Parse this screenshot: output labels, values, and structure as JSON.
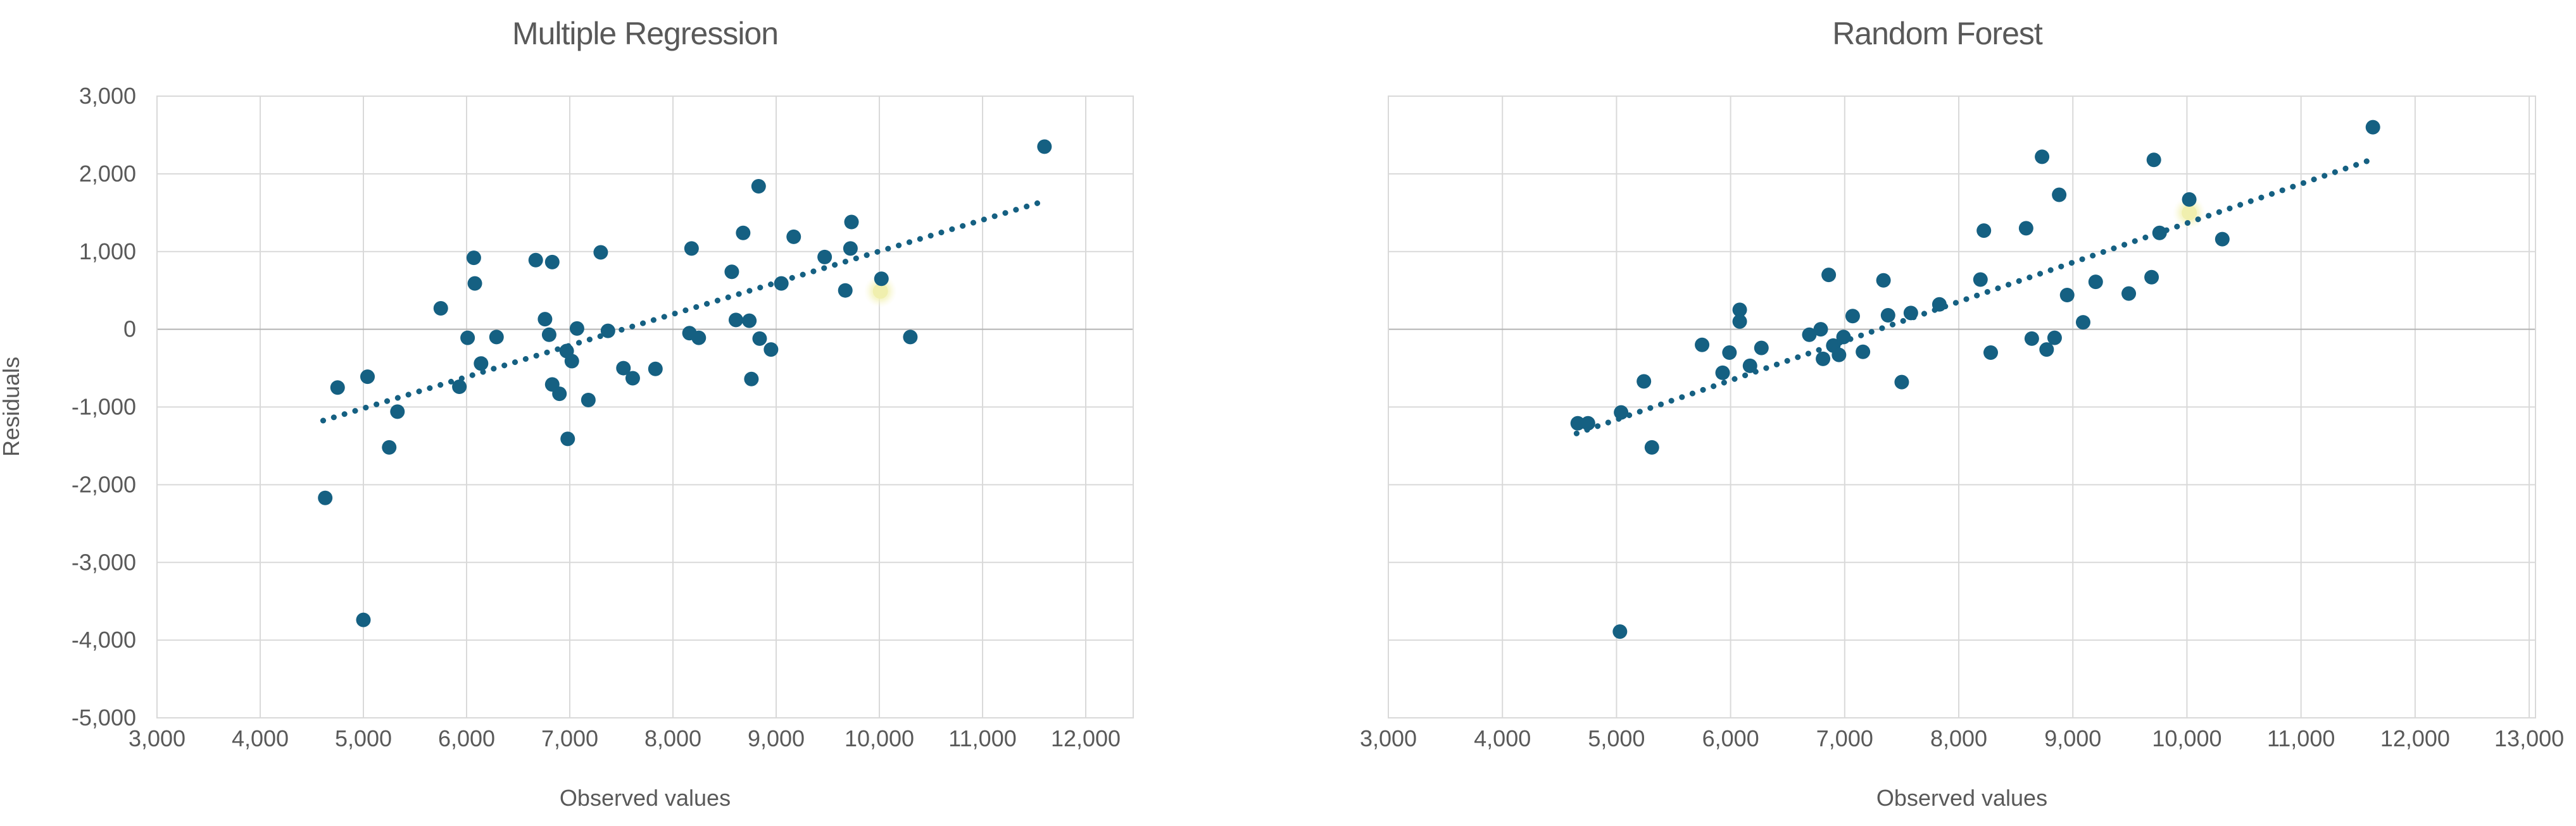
{
  "page": {
    "background_color": "#ffffff",
    "text_color": "#595959",
    "gridline_color": "#d9d9d9",
    "zero_line_color": "#b3b3b3",
    "point_color": "#156082",
    "trendline_color": "#156082",
    "highlight_color": "#f0efae"
  },
  "chart_data": [
    {
      "type": "scatter",
      "title": "Multiple Regression",
      "xlabel": "Observed values",
      "ylabel": "Residuals",
      "xlim": [
        3000,
        12460
      ],
      "ylim": [
        -5000,
        3000
      ],
      "x_ticks": [
        3000,
        4000,
        5000,
        6000,
        7000,
        8000,
        9000,
        10000,
        11000,
        12000
      ],
      "x_tick_labels": [
        "3,000",
        "4,000",
        "5,000",
        "6,000",
        "7,000",
        "8,000",
        "9,000",
        "10,000",
        "11,000",
        "12,000"
      ],
      "y_ticks": [
        3000,
        2000,
        1000,
        0,
        -1000,
        -2000,
        -3000,
        -4000,
        -5000
      ],
      "y_tick_labels": [
        "3,000",
        "2,000",
        "1,000",
        "0",
        "-1,000",
        "-2,000",
        "-3,000",
        "-4,000",
        "-5,000"
      ],
      "show_y_tick_labels": true,
      "grid": true,
      "legend": "none",
      "points": [
        [
          4630,
          -2170
        ],
        [
          4750,
          -750
        ],
        [
          5000,
          -3740
        ],
        [
          5040,
          -610
        ],
        [
          5250,
          -1520
        ],
        [
          5330,
          -1060
        ],
        [
          5750,
          270
        ],
        [
          5930,
          -740
        ],
        [
          6010,
          -110
        ],
        [
          6070,
          920
        ],
        [
          6080,
          590
        ],
        [
          6140,
          -440
        ],
        [
          6290,
          -100
        ],
        [
          6670,
          890
        ],
        [
          6760,
          130
        ],
        [
          6800,
          -70
        ],
        [
          6830,
          865
        ],
        [
          6830,
          -710
        ],
        [
          6900,
          -830
        ],
        [
          6970,
          -280
        ],
        [
          6980,
          -1410
        ],
        [
          7020,
          -410
        ],
        [
          7070,
          10
        ],
        [
          7180,
          -910
        ],
        [
          7300,
          990
        ],
        [
          7370,
          -20
        ],
        [
          7520,
          -500
        ],
        [
          7610,
          -630
        ],
        [
          7830,
          -510
        ],
        [
          8160,
          -50
        ],
        [
          8180,
          1040
        ],
        [
          8250,
          -110
        ],
        [
          8570,
          740
        ],
        [
          8610,
          120
        ],
        [
          8680,
          1240
        ],
        [
          8740,
          110
        ],
        [
          8760,
          -640
        ],
        [
          8830,
          1840
        ],
        [
          8840,
          -120
        ],
        [
          8950,
          -260
        ],
        [
          9050,
          590
        ],
        [
          9170,
          1190
        ],
        [
          9470,
          930
        ],
        [
          9670,
          500
        ],
        [
          9720,
          1040
        ],
        [
          9730,
          1380
        ],
        [
          10020,
          650
        ],
        [
          10300,
          -100
        ],
        [
          11600,
          2350
        ]
      ],
      "highlight_points": [
        [
          10010,
          490
        ]
      ],
      "trendline": {
        "style": "dotted",
        "x1": 4610,
        "y1": -1175,
        "x2": 11600,
        "y2": 1650
      }
    },
    {
      "type": "scatter",
      "title": "Random Forest",
      "xlabel": "Observed values",
      "ylabel": "",
      "xlim": [
        3000,
        13055
      ],
      "ylim": [
        -5000,
        3000
      ],
      "x_ticks": [
        3000,
        4000,
        5000,
        6000,
        7000,
        8000,
        9000,
        10000,
        11000,
        12000,
        13000
      ],
      "x_tick_labels": [
        "3,000",
        "4,000",
        "5,000",
        "6,000",
        "7,000",
        "8,000",
        "9,000",
        "10,000",
        "11,000",
        "12,000",
        "13,000"
      ],
      "y_ticks": [
        3000,
        2000,
        1000,
        0,
        -1000,
        -2000,
        -3000,
        -4000,
        -5000
      ],
      "y_tick_labels": [],
      "show_y_tick_labels": false,
      "grid": true,
      "legend": "none",
      "points": [
        [
          4660,
          -1210
        ],
        [
          4750,
          -1210
        ],
        [
          5030,
          -3890
        ],
        [
          5040,
          -1070
        ],
        [
          5240,
          -670
        ],
        [
          5310,
          -1520
        ],
        [
          5750,
          -200
        ],
        [
          5930,
          -560
        ],
        [
          5990,
          -300
        ],
        [
          6080,
          250
        ],
        [
          6080,
          100
        ],
        [
          6170,
          -470
        ],
        [
          6270,
          -240
        ],
        [
          6690,
          -70
        ],
        [
          6790,
          0
        ],
        [
          6810,
          -380
        ],
        [
          6860,
          700
        ],
        [
          6900,
          -210
        ],
        [
          6950,
          -330
        ],
        [
          6990,
          -100
        ],
        [
          7070,
          170
        ],
        [
          7160,
          -290
        ],
        [
          7340,
          630
        ],
        [
          7380,
          180
        ],
        [
          7500,
          -680
        ],
        [
          7580,
          210
        ],
        [
          7830,
          320
        ],
        [
          8190,
          640
        ],
        [
          8220,
          1270
        ],
        [
          8280,
          -300
        ],
        [
          8590,
          1300
        ],
        [
          8640,
          -120
        ],
        [
          8730,
          2220
        ],
        [
          8770,
          -260
        ],
        [
          8840,
          -110
        ],
        [
          8880,
          1730
        ],
        [
          8950,
          440
        ],
        [
          9090,
          90
        ],
        [
          9200,
          610
        ],
        [
          9490,
          460
        ],
        [
          9690,
          670
        ],
        [
          9710,
          2180
        ],
        [
          9760,
          1240
        ],
        [
          10020,
          1670
        ],
        [
          10310,
          1160
        ],
        [
          11630,
          2600
        ]
      ],
      "highlight_points": [
        [
          10020,
          1500
        ]
      ],
      "trendline": {
        "style": "dotted",
        "x1": 4650,
        "y1": -1340,
        "x2": 11650,
        "y2": 2200
      }
    }
  ]
}
